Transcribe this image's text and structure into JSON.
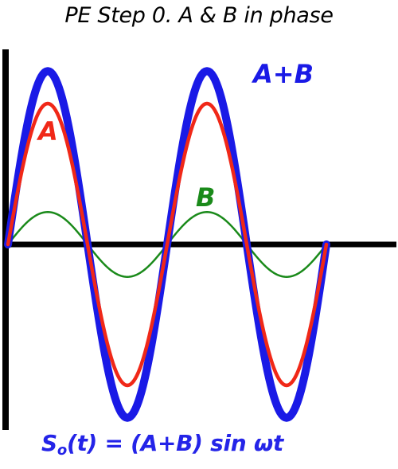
{
  "title": "PE Step 0.  A & B in phase",
  "labels": {
    "sum": "A+B",
    "a": "A",
    "b": "B"
  },
  "formula": {
    "prefix": "S",
    "subscript": "o",
    "rest": "(t) = (A+B) sin ωt"
  },
  "colors": {
    "sum": "#1a1ae6",
    "a": "#f02818",
    "b": "#1a8a1a",
    "axis": "#000000"
  },
  "waves": {
    "cycles": 2,
    "a_amplitude": 1.0,
    "b_amplitude": 0.23,
    "sum_amplitude": 1.23
  }
}
